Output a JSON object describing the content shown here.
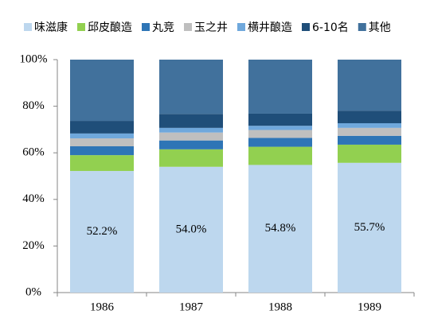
{
  "chart_data": {
    "type": "stacked_bar",
    "categories": [
      "1986",
      "1987",
      "1988",
      "1989"
    ],
    "series": [
      {
        "name": "味滋康",
        "color": "#bdd7ee",
        "values": [
          52.2,
          54.0,
          54.8,
          55.7
        ],
        "value_labels": [
          "52.2%",
          "54.0%",
          "54.8%",
          "55.7%"
        ]
      },
      {
        "name": "邱皮酿造",
        "color": "#92d050",
        "values": [
          6.8,
          7.5,
          7.8,
          7.8
        ]
      },
      {
        "name": "丸竞",
        "color": "#2e75b6",
        "values": [
          3.8,
          3.8,
          3.8,
          3.8
        ]
      },
      {
        "name": "玉之井",
        "color": "#bfbfbf",
        "values": [
          3.4,
          3.4,
          3.4,
          3.4
        ]
      },
      {
        "name": "横井酿造",
        "color": "#6fa8dc",
        "values": [
          2.1,
          2.0,
          1.8,
          2.0
        ]
      },
      {
        "name": "6-10名",
        "color": "#1f4e79",
        "values": [
          5.4,
          6.0,
          5.2,
          5.4
        ]
      },
      {
        "name": "其他",
        "color": "#41719c",
        "values": [
          26.3,
          23.3,
          23.2,
          21.9
        ]
      }
    ],
    "ylim": [
      0,
      100
    ],
    "yticks": [
      {
        "value": 0,
        "label": "0%"
      },
      {
        "value": 20,
        "label": "20%"
      },
      {
        "value": 40,
        "label": "40%"
      },
      {
        "value": 60,
        "label": "60%"
      },
      {
        "value": 80,
        "label": "80%"
      },
      {
        "value": 100,
        "label": "100%"
      }
    ],
    "grid": false,
    "legend": "top"
  }
}
